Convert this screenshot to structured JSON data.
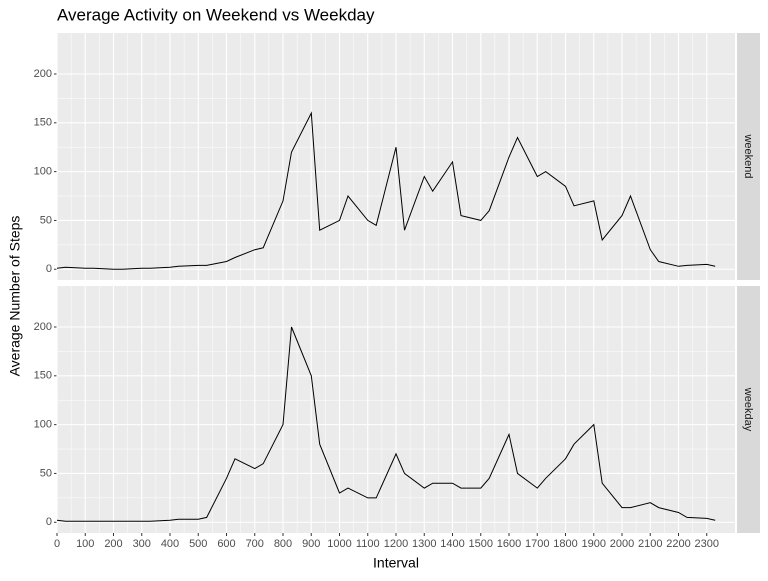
{
  "chart_data": {
    "type": "line",
    "title": "Average Activity on Weekend vs Weekday",
    "x_label": "Interval",
    "y_label": "Average Number of Steps",
    "x": [
      0,
      30,
      100,
      130,
      200,
      230,
      300,
      330,
      400,
      430,
      500,
      530,
      600,
      630,
      700,
      730,
      800,
      830,
      900,
      930,
      1000,
      1030,
      1100,
      1130,
      1200,
      1230,
      1300,
      1330,
      1400,
      1430,
      1500,
      1530,
      1600,
      1630,
      1700,
      1730,
      1800,
      1830,
      1900,
      1930,
      2000,
      2030,
      2100,
      2130,
      2200,
      2230,
      2300,
      2330
    ],
    "series": [
      {
        "name": "weekend",
        "color": "#000000",
        "values": [
          1,
          2,
          1,
          1,
          0,
          0,
          1,
          1,
          2,
          3,
          4,
          4,
          8,
          12,
          20,
          22,
          70,
          120,
          160,
          40,
          50,
          75,
          50,
          45,
          125,
          40,
          95,
          80,
          110,
          55,
          50,
          60,
          115,
          135,
          95,
          100,
          85,
          65,
          70,
          30,
          55,
          75,
          20,
          8,
          3,
          4,
          5,
          3
        ]
      },
      {
        "name": "weekday",
        "color": "#000000",
        "values": [
          2,
          1,
          1,
          1,
          1,
          1,
          1,
          1,
          2,
          3,
          3,
          5,
          45,
          65,
          55,
          60,
          100,
          200,
          150,
          80,
          30,
          35,
          25,
          25,
          70,
          50,
          35,
          40,
          40,
          35,
          35,
          45,
          90,
          50,
          35,
          45,
          65,
          80,
          100,
          40,
          15,
          15,
          20,
          15,
          10,
          5,
          4,
          2
        ]
      }
    ],
    "xlim": [
      0,
      2400
    ],
    "ylim": [
      -11,
      242
    ],
    "xticks": [
      0,
      100,
      200,
      300,
      400,
      500,
      600,
      700,
      800,
      900,
      1000,
      1100,
      1200,
      1300,
      1400,
      1500,
      1600,
      1700,
      1800,
      1900,
      2000,
      2100,
      2200,
      2300
    ],
    "yticks": [
      0,
      50,
      100,
      150,
      200
    ],
    "grid": true
  }
}
